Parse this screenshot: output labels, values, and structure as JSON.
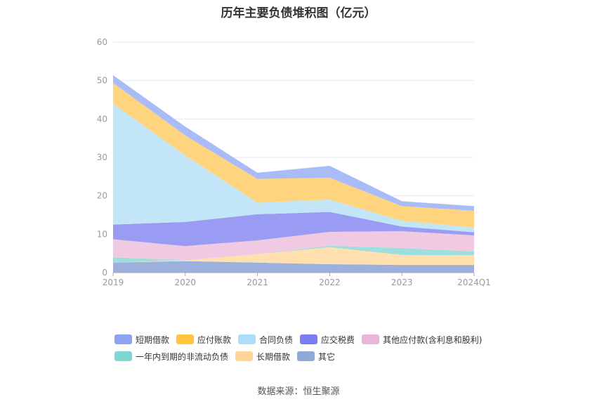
{
  "chart_data": {
    "type": "area",
    "stacked": true,
    "title": "历年主要负债堆积图（亿元）",
    "categories": [
      "2019",
      "2020",
      "2021",
      "2022",
      "2023",
      "2024Q1"
    ],
    "ylim": [
      0,
      60
    ],
    "yticks": [
      0,
      10,
      20,
      30,
      40,
      50,
      60
    ],
    "grid": true,
    "legend_position": "bottom",
    "series": [
      {
        "name": "其它",
        "color": "#9BB0DC",
        "values": [
          2.6,
          3.0,
          2.6,
          2.2,
          2.0,
          2.0
        ]
      },
      {
        "name": "长期借款",
        "color": "#FFE0AE",
        "values": [
          0.0,
          0.2,
          2.2,
          4.4,
          2.6,
          2.5
        ]
      },
      {
        "name": "一年内到期的非流动负债",
        "color": "#9DDFDC",
        "values": [
          1.4,
          0.0,
          0.0,
          0.4,
          1.8,
          1.0
        ]
      },
      {
        "name": "其他应付款(含利息和股利)",
        "color": "#F0C9E3",
        "values": [
          4.7,
          3.7,
          3.6,
          3.6,
          4.4,
          4.2
        ]
      },
      {
        "name": "应交税费",
        "color": "#9A9CF3",
        "values": [
          3.8,
          6.3,
          6.8,
          5.2,
          1.2,
          0.8
        ]
      },
      {
        "name": "合同负债",
        "color": "#C2E6F8",
        "values": [
          31.5,
          17.3,
          3.0,
          3.2,
          1.5,
          1.2
        ]
      },
      {
        "name": "应付账款",
        "color": "#FFD47E",
        "values": [
          5.4,
          5.2,
          6.2,
          5.7,
          3.8,
          4.4
        ]
      },
      {
        "name": "短期借款",
        "color": "#A9BCF8",
        "values": [
          2.0,
          2.3,
          1.6,
          3.1,
          1.3,
          1.2
        ]
      }
    ]
  },
  "legend": {
    "row1": [
      {
        "name": "短期借款",
        "color": "#8BA2F5"
      },
      {
        "name": "应付账款",
        "color": "#FFC53D"
      },
      {
        "name": "合同负债",
        "color": "#A9DFF8"
      },
      {
        "name": "应交税费",
        "color": "#7A7DF0"
      },
      {
        "name": "其他应付款(含利息和股利)",
        "color": "#E9B5DA"
      }
    ],
    "row2": [
      {
        "name": "一年内到期的非流动负债",
        "color": "#7FD6D2"
      },
      {
        "name": "长期借款",
        "color": "#FFD698"
      },
      {
        "name": "其它",
        "color": "#8EAAD9"
      }
    ]
  },
  "source": "数据来源：恒生聚源"
}
